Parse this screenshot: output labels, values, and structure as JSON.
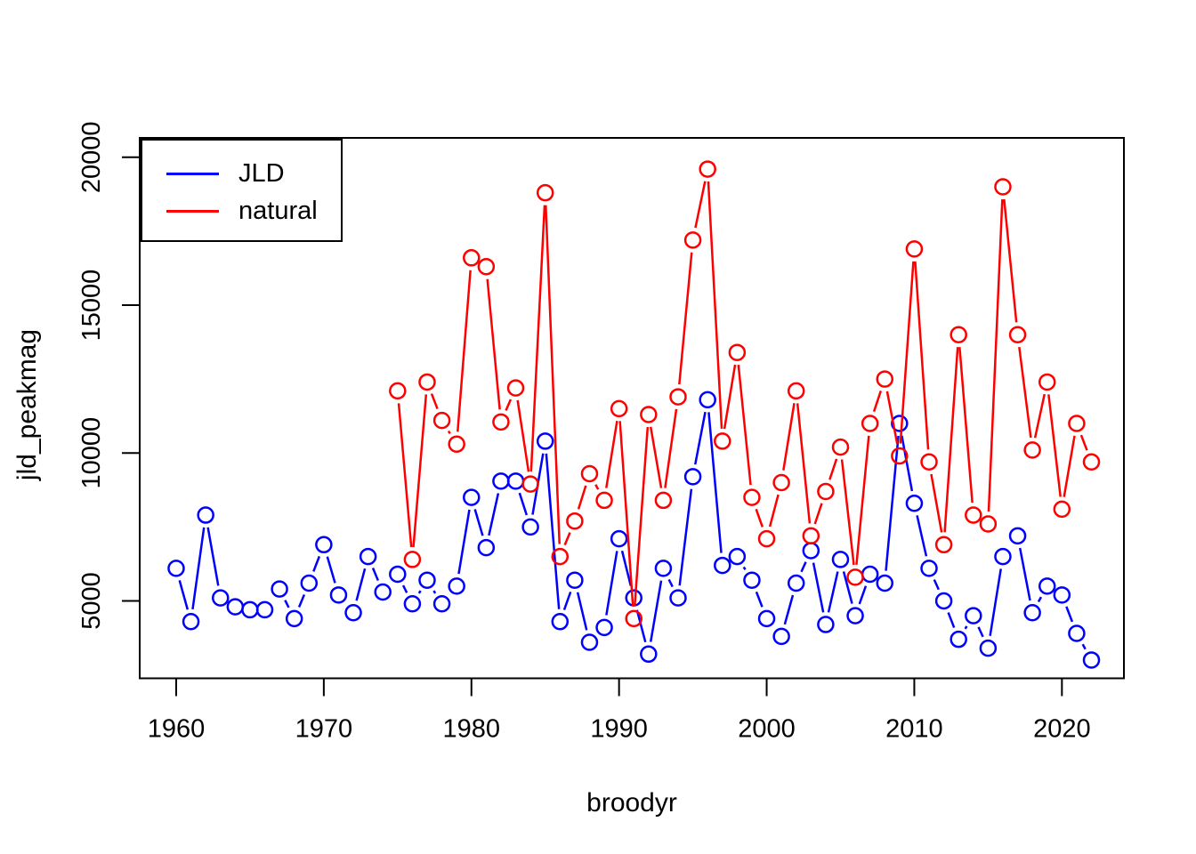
{
  "figure": {
    "background": "#ffffff",
    "axis_color": "#000000",
    "xlabel": "broodyr",
    "ylabel": "jld_peakmag"
  },
  "legend": {
    "position": "top-left",
    "items": [
      {
        "label": "JLD",
        "color": "#0000ff"
      },
      {
        "label": "natural",
        "color": "#ff0000"
      }
    ]
  },
  "chart_data": {
    "type": "line",
    "title": "",
    "xlabel": "broodyr",
    "ylabel": "jld_peakmag",
    "grid": false,
    "marker": "open-circle",
    "legend_position": "top-left",
    "x_ticks": [
      1960,
      1970,
      1980,
      1990,
      2000,
      2010,
      2020
    ],
    "y_ticks": [
      5000,
      10000,
      15000,
      20000
    ],
    "xlim": [
      1957.53,
      2024.2
    ],
    "ylim": [
      2382,
      20655
    ],
    "series": [
      {
        "name": "JLD",
        "color": "#0000ff",
        "x": [
          1960,
          1961,
          1962,
          1963,
          1964,
          1965,
          1966,
          1967,
          1968,
          1969,
          1970,
          1971,
          1972,
          1973,
          1974,
          1975,
          1976,
          1977,
          1978,
          1979,
          1980,
          1981,
          1982,
          1983,
          1984,
          1985,
          1986,
          1987,
          1988,
          1989,
          1990,
          1991,
          1992,
          1993,
          1994,
          1995,
          1996,
          1997,
          1998,
          1999,
          2000,
          2001,
          2002,
          2003,
          2004,
          2005,
          2006,
          2007,
          2008,
          2009,
          2010,
          2011,
          2012,
          2013,
          2014,
          2015,
          2016,
          2017,
          2018,
          2019,
          2020,
          2021,
          2022
        ],
        "y": [
          6100,
          4300,
          7900,
          5100,
          4800,
          4700,
          4700,
          5400,
          4400,
          5600,
          6900,
          5200,
          4600,
          6500,
          5300,
          5900,
          4900,
          5700,
          4900,
          5500,
          8500,
          6800,
          9050,
          9050,
          7500,
          10400,
          4300,
          5700,
          3600,
          4100,
          7100,
          5100,
          3200,
          6100,
          5100,
          9200,
          11800,
          6200,
          6500,
          5700,
          4400,
          3800,
          5600,
          6700,
          4200,
          6400,
          4500,
          5900,
          5600,
          11000,
          8300,
          6100,
          5000,
          3700,
          4500,
          3400,
          6500,
          7200,
          4600,
          5500,
          5200,
          3900,
          3000
        ]
      },
      {
        "name": "natural",
        "color": "#ff0000",
        "x": [
          1975,
          1976,
          1977,
          1978,
          1979,
          1980,
          1981,
          1982,
          1983,
          1984,
          1985,
          1986,
          1987,
          1988,
          1989,
          1990,
          1991,
          1992,
          1993,
          1994,
          1995,
          1996,
          1997,
          1998,
          1999,
          2000,
          2001,
          2002,
          2003,
          2004,
          2005,
          2006,
          2007,
          2008,
          2009,
          2010,
          2011,
          2012,
          2013,
          2014,
          2015,
          2016,
          2017,
          2018,
          2019,
          2020,
          2021,
          2022
        ],
        "y": [
          12100,
          6400,
          12400,
          11100,
          10300,
          16600,
          16300,
          11050,
          12200,
          8950,
          18800,
          6500,
          7700,
          9300,
          8400,
          11500,
          4400,
          11300,
          8400,
          11900,
          17200,
          19600,
          10400,
          13400,
          8500,
          7100,
          9000,
          12100,
          7200,
          8700,
          10200,
          5800,
          11000,
          12500,
          9900,
          16900,
          9700,
          6900,
          14000,
          7900,
          7600,
          19000,
          14000,
          10100,
          12400,
          8100,
          11000,
          9700
        ]
      }
    ]
  }
}
